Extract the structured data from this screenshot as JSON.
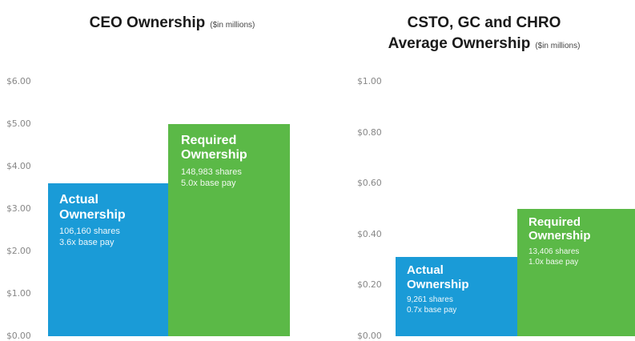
{
  "chart_data": [
    {
      "type": "bar",
      "title": "CEO Ownership",
      "units": "($in millions)",
      "ylim": [
        0,
        6
      ],
      "yticks": [
        "$0.00",
        "$1.00",
        "$2.00",
        "$3.00",
        "$4.00",
        "$5.00",
        "$6.00"
      ],
      "ytick_values": [
        0,
        1,
        2,
        3,
        4,
        5,
        6
      ],
      "categories": [
        "Actual Ownership",
        "Required Ownership"
      ],
      "values": [
        3.6,
        5.0
      ],
      "bars": [
        {
          "label_line1": "Actual",
          "label_line2": "Ownership",
          "shares": "106,160 shares",
          "pay": "3.6x base pay",
          "color": "#1a9bd7"
        },
        {
          "label_line1": "Required",
          "label_line2": "Ownership",
          "shares": "148,983 shares",
          "pay": "5.0x base pay",
          "color": "#5bb947"
        }
      ],
      "grid": false
    },
    {
      "type": "bar",
      "title_line1": "CSTO, GC and CHRO",
      "title_line2": "Average Ownership",
      "units": "($in millions)",
      "ylim": [
        0,
        1
      ],
      "yticks": [
        "$0.00",
        "$0.20",
        "$0.40",
        "$0.60",
        "$0.80",
        "$1.00"
      ],
      "ytick_values": [
        0,
        0.2,
        0.4,
        0.6,
        0.8,
        1.0
      ],
      "categories": [
        "Actual Ownership",
        "Required Ownership"
      ],
      "values": [
        0.31,
        0.5
      ],
      "bars": [
        {
          "label_line1": "Actual",
          "label_line2": "Ownership",
          "shares": "9,261 shares",
          "pay": "0.7x base pay",
          "color": "#1a9bd7"
        },
        {
          "label_line1": "Required",
          "label_line2": "Ownership",
          "shares": "13,406 shares",
          "pay": "1.0x base pay",
          "color": "#5bb947"
        }
      ],
      "grid": false
    }
  ]
}
